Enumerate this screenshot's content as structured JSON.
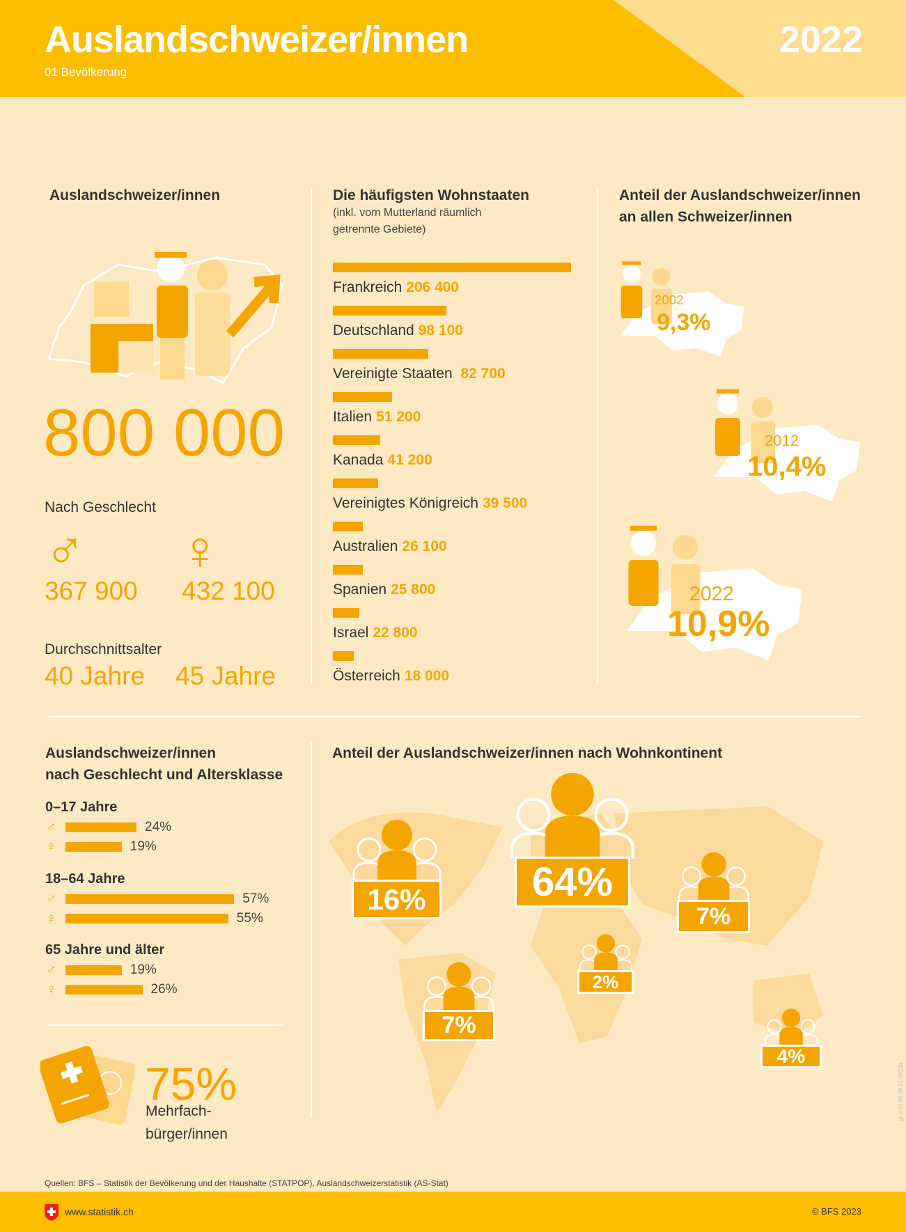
{
  "header": {
    "title": "Auslandschweizer/innen",
    "subtitle": "01 Bevölkerung",
    "year": "2022"
  },
  "total": {
    "title": "Auslandschweizer/innen",
    "value": "800 000",
    "gender_label": "Nach Geschlecht",
    "men": "367 900",
    "women": "432 100",
    "age_label": "Durchschnittsalter",
    "men_age": "40 Jahre",
    "women_age": "45 Jahre"
  },
  "countries": {
    "title": "Die häufigsten Wohnstaaten",
    "subtitle1": "(inkl. vom Mutterland räumlich",
    "subtitle2": "getrennte Gebiete)",
    "items": [
      {
        "name": "Frankreich",
        "value": "206 400"
      },
      {
        "name": "Deutschland",
        "value": "98 100"
      },
      {
        "name": "Vereinigte Staaten ",
        "value": "82 700"
      },
      {
        "name": "Italien",
        "value": "51 200"
      },
      {
        "name": "Kanada",
        "value": "41 200"
      },
      {
        "name": "Vereinigtes Königreich",
        "value": "39 500"
      },
      {
        "name": "Australien",
        "value": "26 100"
      },
      {
        "name": "Spanien",
        "value": "25 800"
      },
      {
        "name": "Israel",
        "value": "22 800"
      },
      {
        "name": "Österreich",
        "value": "18 000"
      }
    ]
  },
  "share": {
    "title1": "Anteil der Auslandschweizer/innen",
    "title2": "an allen Schweizer/innen",
    "items": [
      {
        "year": "2002",
        "value": "9,3%"
      },
      {
        "year": "2012",
        "value": "10,4%"
      },
      {
        "year": "2022",
        "value": "10,9%"
      }
    ]
  },
  "age": {
    "title1": "Auslandschweizer/innen",
    "title2": "nach Geschlecht und Altersklasse",
    "male_symbol": "♂",
    "female_symbol": "♀",
    "groups": [
      {
        "label": "0–17 Jahre",
        "m": "24%",
        "f": "19%"
      },
      {
        "label": "18–64 Jahre",
        "m": "57%",
        "f": "55%"
      },
      {
        "label": "65 Jahre und älter",
        "m": "19%",
        "f": "26%"
      }
    ]
  },
  "multi": {
    "value": "75%",
    "label1": "Mehrfach-",
    "label2": "bürger/innen"
  },
  "continents": {
    "title": "Anteil der Auslandschweizer/innen nach Wohnkontinent",
    "items": [
      {
        "name": "Nordamerika",
        "value": "16%"
      },
      {
        "name": "Europa",
        "value": "64%"
      },
      {
        "name": "Asien",
        "value": "7%"
      },
      {
        "name": "Afrika",
        "value": "2%"
      },
      {
        "name": "Lateinamerika",
        "value": "7%"
      },
      {
        "name": "Ozeanien",
        "value": "4%"
      }
    ]
  },
  "footer": {
    "source": "Quellen: BFS – Statistik der Bevölkerung und der Haushalte (STATPOP), Auslandschweizerstatistik (AS-Stat)",
    "url": "www.statistik.ch",
    "copyright": "© BFS 2023",
    "code": "gr-d-01.05.09.01-2023a"
  },
  "colors": {
    "header": "#fdbe00",
    "accent": "#f5a500",
    "background": "#fdeac4"
  },
  "chart_data": [
    {
      "type": "bar",
      "orientation": "horizontal",
      "title": "Die häufigsten Wohnstaaten",
      "categories": [
        "Frankreich",
        "Deutschland",
        "Vereinigte Staaten",
        "Italien",
        "Kanada",
        "Vereinigtes Königreich",
        "Australien",
        "Spanien",
        "Israel",
        "Österreich"
      ],
      "values": [
        206400,
        98100,
        82700,
        51200,
        41200,
        39500,
        26100,
        25800,
        22800,
        18000
      ]
    },
    {
      "type": "bar",
      "orientation": "horizontal",
      "title": "Auslandschweizer/innen nach Geschlecht und Altersklasse",
      "categories": [
        "0–17 Jahre",
        "18–64 Jahre",
        "65 Jahre und älter"
      ],
      "series": [
        {
          "name": "♂",
          "values": [
            24,
            57,
            19
          ]
        },
        {
          "name": "♀",
          "values": [
            19,
            55,
            26
          ]
        }
      ],
      "unit": "%"
    },
    {
      "type": "pie",
      "title": "Anteil der Auslandschweizer/innen nach Wohnkontinent",
      "categories": [
        "Europa",
        "Nordamerika",
        "Asien",
        "Lateinamerika",
        "Ozeanien",
        "Afrika"
      ],
      "values": [
        64,
        16,
        7,
        7,
        4,
        2
      ]
    }
  ]
}
